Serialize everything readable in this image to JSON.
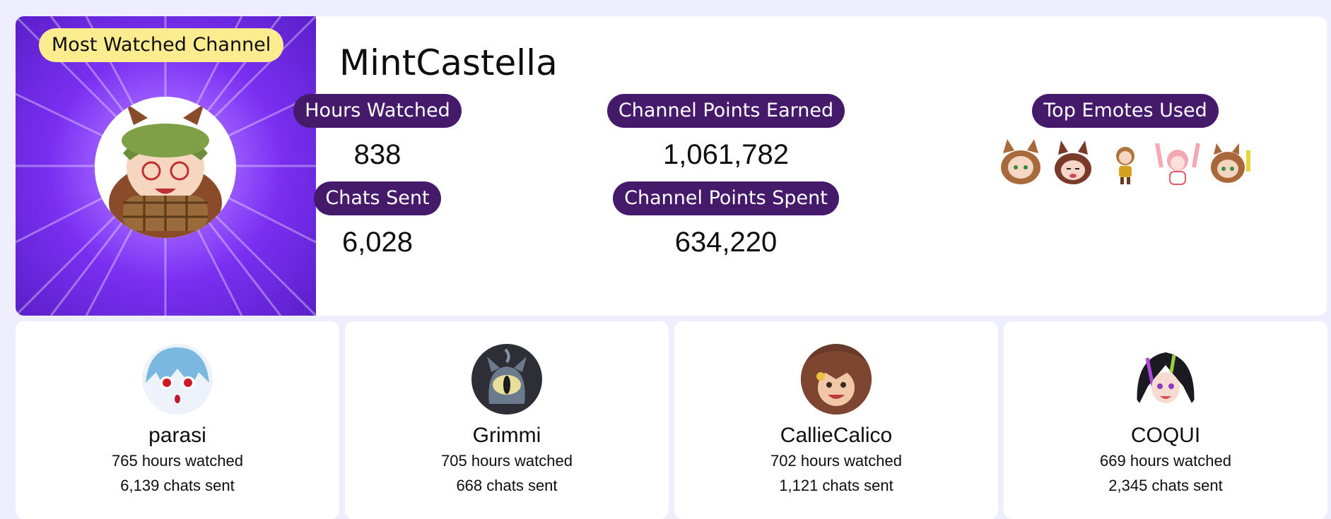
{
  "featured": {
    "badge": "Most Watched Channel",
    "channel_name": "MintCastella",
    "stats": {
      "hours_watched_label": "Hours Watched",
      "hours_watched_value": "838",
      "chats_sent_label": "Chats Sent",
      "chats_sent_value": "6,028",
      "points_earned_label": "Channel Points Earned",
      "points_earned_value": "1,061,782",
      "points_spent_label": "Channel Points Spent",
      "points_spent_value": "634,220",
      "top_emotes_label": "Top Emotes Used"
    },
    "emotes": [
      "emote-1",
      "emote-2",
      "emote-3",
      "emote-4",
      "emote-5"
    ]
  },
  "channels": [
    {
      "name": "parasi",
      "hours": "765 hours watched",
      "chats": "6,139 chats sent"
    },
    {
      "name": "Grimmi",
      "hours": "705 hours watched",
      "chats": "668 chats sent"
    },
    {
      "name": "CallieCalico",
      "hours": "702 hours watched",
      "chats": "1,121 chats sent"
    },
    {
      "name": "COQUI",
      "hours": "669 hours watched",
      "chats": "2,345 chats sent"
    }
  ],
  "colors": {
    "background": "#efeefe",
    "pill": "#451a6b",
    "badge": "#fcec90",
    "hero": "#7a2ff0"
  }
}
